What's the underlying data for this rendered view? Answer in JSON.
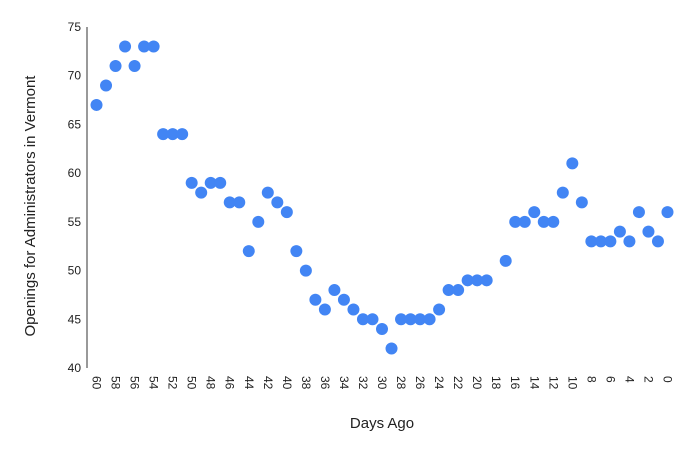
{
  "chart_data": {
    "type": "scatter",
    "x_label": "Days Ago",
    "y_label": "Openings for Administrators in Vermont",
    "x": [
      60,
      59,
      58,
      57,
      56,
      55,
      54,
      53,
      52,
      51,
      50,
      49,
      48,
      47,
      46,
      45,
      44,
      43,
      42,
      41,
      40,
      39,
      38,
      37,
      36,
      35,
      34,
      33,
      32,
      31,
      30,
      29,
      28,
      27,
      26,
      25,
      24,
      23,
      22,
      21,
      20,
      19,
      17,
      16,
      15,
      14,
      13,
      12,
      11,
      10,
      9,
      8,
      7,
      6,
      5,
      4,
      3,
      2,
      1,
      0
    ],
    "values": [
      67,
      69,
      71,
      73,
      71,
      73,
      73,
      64,
      64,
      64,
      59,
      58,
      59,
      59,
      57,
      57,
      52,
      55,
      58,
      57,
      56,
      52,
      50,
      47,
      46,
      48,
      47,
      46,
      45,
      45,
      44,
      42,
      45,
      45,
      45,
      45,
      46,
      48,
      48,
      49,
      49,
      49,
      51,
      55,
      55,
      56,
      55,
      55,
      58,
      61,
      57,
      53,
      53,
      53,
      54,
      53,
      56,
      54,
      53,
      56
    ],
    "color": "#4285f4",
    "xlim": [
      61,
      -1
    ],
    "xticks": [
      60,
      58,
      56,
      54,
      52,
      50,
      48,
      46,
      44,
      42,
      40,
      38,
      36,
      34,
      32,
      30,
      28,
      26,
      24,
      22,
      20,
      18,
      16,
      14,
      12,
      10,
      8,
      6,
      4,
      2,
      0
    ],
    "ylim": [
      40,
      75
    ],
    "yticks": [
      40,
      45,
      50,
      55,
      60,
      65,
      70,
      75
    ],
    "grid": false
  }
}
